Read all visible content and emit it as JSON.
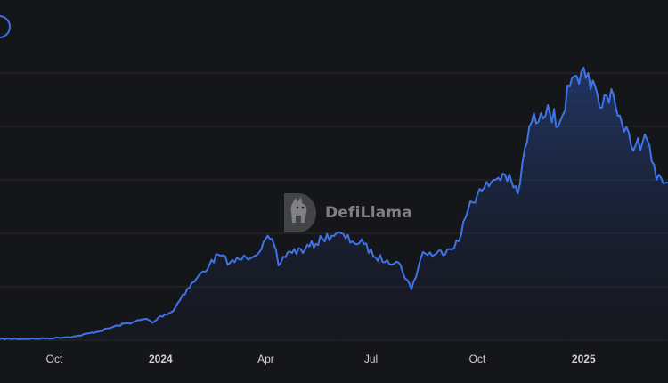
{
  "watermark": {
    "brand": "DefiLlama",
    "logo_icon": "defillama-llama-logo"
  },
  "colors": {
    "background": "#151619",
    "line": "#3f73e6",
    "grid": "#2a2b2f",
    "axis_text": "#d2d2d2"
  },
  "controls": {
    "range_button_icon": "circle-outline-icon"
  },
  "chart_data": {
    "type": "area",
    "title": "",
    "xlabel": "",
    "ylabel": "",
    "grid": "horizontal",
    "x_tick_labels": [
      {
        "label": "Oct",
        "date": "2023-10-01",
        "bold": false
      },
      {
        "label": "2024",
        "date": "2024-01-01",
        "bold": true
      },
      {
        "label": "Apr",
        "date": "2024-04-01",
        "bold": false
      },
      {
        "label": "Jul",
        "date": "2024-07-01",
        "bold": false
      },
      {
        "label": "Oct",
        "date": "2024-10-01",
        "bold": false
      },
      {
        "label": "2025",
        "date": "2025-01-01",
        "bold": true
      }
    ],
    "xlim": [
      "2023-08-15",
      "2025-03-15"
    ],
    "ylim": [
      0,
      100
    ],
    "series": [
      {
        "values": [
          [
            "2023-08-15",
            0.5
          ],
          [
            "2023-09-15",
            0.6
          ],
          [
            "2023-10-01",
            0.8
          ],
          [
            "2023-10-20",
            1.5
          ],
          [
            "2023-11-10",
            3.5
          ],
          [
            "2023-11-25",
            5.5
          ],
          [
            "2023-12-10",
            7
          ],
          [
            "2023-12-20",
            8
          ],
          [
            "2023-12-25",
            6.5
          ],
          [
            "2024-01-01",
            9
          ],
          [
            "2024-01-12",
            11
          ],
          [
            "2024-01-20",
            17
          ],
          [
            "2024-02-01",
            23
          ],
          [
            "2024-02-12",
            28
          ],
          [
            "2024-02-20",
            32
          ],
          [
            "2024-03-01",
            29
          ],
          [
            "2024-03-15",
            31
          ],
          [
            "2024-03-28",
            34
          ],
          [
            "2024-04-01",
            38
          ],
          [
            "2024-04-08",
            36
          ],
          [
            "2024-04-12",
            28
          ],
          [
            "2024-04-20",
            33
          ],
          [
            "2024-05-05",
            34
          ],
          [
            "2024-05-20",
            38
          ],
          [
            "2024-06-01",
            40
          ],
          [
            "2024-06-15",
            37
          ],
          [
            "2024-06-25",
            36
          ],
          [
            "2024-07-05",
            31
          ],
          [
            "2024-07-15",
            30
          ],
          [
            "2024-07-25",
            29
          ],
          [
            "2024-08-05",
            19
          ],
          [
            "2024-08-15",
            33
          ],
          [
            "2024-08-25",
            32
          ],
          [
            "2024-09-05",
            34
          ],
          [
            "2024-09-15",
            37
          ],
          [
            "2024-09-25",
            52
          ],
          [
            "2024-10-05",
            56
          ],
          [
            "2024-10-15",
            60
          ],
          [
            "2024-10-25",
            62
          ],
          [
            "2024-11-05",
            55
          ],
          [
            "2024-11-15",
            80
          ],
          [
            "2024-11-25",
            85
          ],
          [
            "2024-12-01",
            88
          ],
          [
            "2024-12-10",
            80
          ],
          [
            "2024-12-20",
            95
          ],
          [
            "2024-12-28",
            96
          ],
          [
            "2025-01-05",
            100
          ],
          [
            "2025-01-15",
            87
          ],
          [
            "2025-01-25",
            94
          ],
          [
            "2025-02-05",
            78
          ],
          [
            "2025-02-15",
            73
          ],
          [
            "2025-02-25",
            75
          ],
          [
            "2025-03-05",
            60
          ],
          [
            "2025-03-15",
            59
          ]
        ]
      }
    ]
  }
}
